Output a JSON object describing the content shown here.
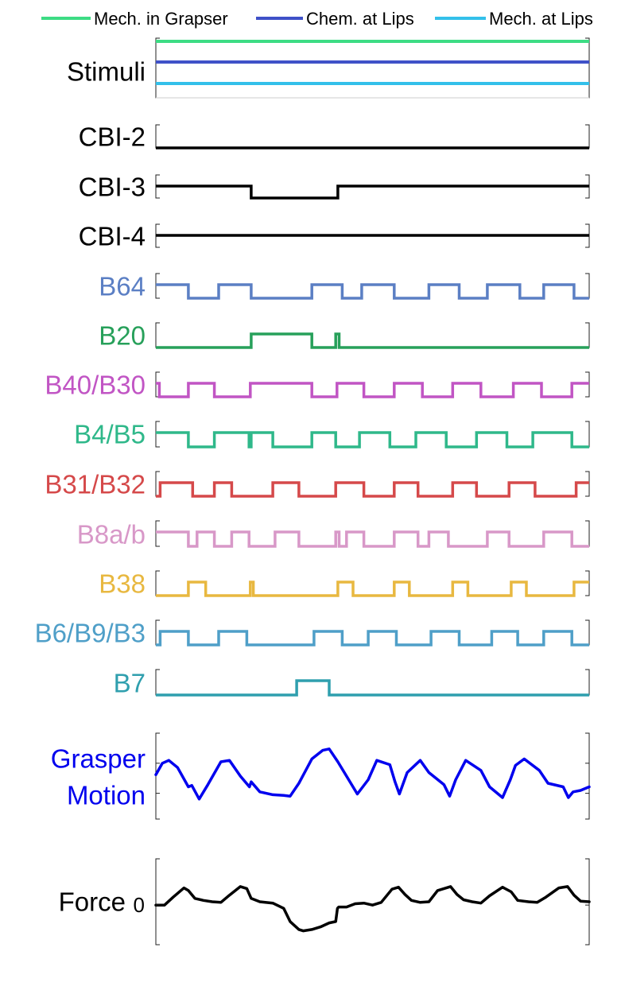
{
  "chart_data": {
    "type": "line",
    "x_range": [
      0,
      100
    ],
    "grid": false,
    "legend": {
      "placement": "top",
      "entries": [
        {
          "name": "Mech. in Grapser",
          "color": "#3ddc84"
        },
        {
          "name": "Chem. at Lips",
          "color": "#3f51c8"
        },
        {
          "name": "Mech. at Lips",
          "color": "#33c0ea"
        }
      ]
    },
    "rows": [
      {
        "label": "Stimuli",
        "label_color": "#000000",
        "kind": "stimuli",
        "lines": [
          {
            "name": "Mech. in Grapser",
            "color": "#3ddc84",
            "level": 1
          },
          {
            "name": "Chem. at Lips",
            "color": "#3f51c8",
            "level": 1
          },
          {
            "name": "Mech. at Lips",
            "color": "#33c0ea",
            "level": 1
          }
        ]
      },
      {
        "label": "CBI-2",
        "label_color": "#000000",
        "color": "#000000",
        "kind": "step",
        "start": 0,
        "intervals": []
      },
      {
        "label": "CBI-3",
        "label_color": "#000000",
        "color": "#000000",
        "kind": "step",
        "start": 1,
        "intervals": [
          [
            0,
            22
          ],
          [
            42,
            100
          ]
        ]
      },
      {
        "label": "CBI-4",
        "label_color": "#000000",
        "color": "#000000",
        "kind": "step",
        "start": 1,
        "intervals": [
          [
            0,
            100
          ]
        ]
      },
      {
        "label": "B64",
        "label_color": "#5b7fc4",
        "color": "#5b7fc4",
        "kind": "step",
        "start": 1,
        "intervals": [
          [
            0,
            7.5
          ],
          [
            14.5,
            22
          ],
          [
            36,
            43
          ],
          [
            47.5,
            55
          ],
          [
            63,
            70
          ],
          [
            76.5,
            84
          ],
          [
            89.5,
            96.5
          ]
        ]
      },
      {
        "label": "B20",
        "label_color": "#27a05a",
        "color": "#27a05a",
        "kind": "step",
        "start": 0,
        "intervals": [
          [
            22,
            36
          ],
          [
            41.5,
            42.3
          ]
        ]
      },
      {
        "label": "B40/B30",
        "label_color": "#c155c4",
        "color": "#c155c4",
        "kind": "step",
        "start": 0,
        "intervals": [
          [
            0,
            0.8
          ],
          [
            7.5,
            13.5
          ],
          [
            21.8,
            36
          ],
          [
            41.8,
            48
          ],
          [
            55,
            61.5
          ],
          [
            68.5,
            75
          ],
          [
            82.5,
            89
          ],
          [
            96,
            100
          ]
        ]
      },
      {
        "label": "B4/B5",
        "label_color": "#2fb88a",
        "color": "#2fb88a",
        "kind": "step",
        "start": 1,
        "intervals": [
          [
            0,
            7.5
          ],
          [
            13.5,
            21.5
          ],
          [
            22,
            27
          ],
          [
            36,
            41.5
          ],
          [
            47,
            54
          ],
          [
            60,
            67
          ],
          [
            74,
            81
          ],
          [
            87,
            96
          ]
        ]
      },
      {
        "label": "B31/B32",
        "label_color": "#d5494a",
        "color": "#d5494a",
        "kind": "step",
        "start": 0,
        "intervals": [
          [
            1,
            8.5
          ],
          [
            13.5,
            17.5
          ],
          [
            27,
            33
          ],
          [
            41.5,
            48
          ],
          [
            55,
            60.5
          ],
          [
            68.5,
            74
          ],
          [
            81.5,
            87.5
          ],
          [
            97,
            100
          ]
        ]
      },
      {
        "label": "B8a/b",
        "label_color": "#d898c8",
        "color": "#d898c8",
        "kind": "step",
        "start": 1,
        "intervals": [
          [
            0,
            7.5
          ],
          [
            9.5,
            13.5
          ],
          [
            17.5,
            21.5
          ],
          [
            27.5,
            33
          ],
          [
            41.5,
            42.3
          ],
          [
            44,
            48
          ],
          [
            55,
            60.5
          ],
          [
            63,
            67.5
          ],
          [
            76.5,
            81.5
          ],
          [
            89.5,
            96
          ]
        ]
      },
      {
        "label": "B38",
        "label_color": "#e8b840",
        "color": "#e8b840",
        "kind": "step",
        "start": 0,
        "intervals": [
          [
            7.5,
            11.5
          ],
          [
            21.8,
            22.5
          ],
          [
            42,
            45.5
          ],
          [
            55,
            58.5
          ],
          [
            68.5,
            72
          ],
          [
            82,
            85.5
          ],
          [
            96.5,
            100
          ]
        ]
      },
      {
        "label": "B6/B9/B3",
        "label_color": "#4f9fc8",
        "color": "#4f9fc8",
        "kind": "step",
        "start": 0,
        "intervals": [
          [
            1,
            7.5
          ],
          [
            14.5,
            21
          ],
          [
            36.5,
            43
          ],
          [
            49,
            55.5
          ],
          [
            63.5,
            70
          ],
          [
            77.5,
            83.5
          ],
          [
            89.5,
            96
          ]
        ]
      },
      {
        "label": "B7",
        "label_color": "#2f9fae",
        "color": "#2f9fae",
        "kind": "step",
        "start": 0,
        "intervals": [
          [
            32.5,
            40
          ]
        ]
      },
      {
        "label": "Grasper\nMotion",
        "label_color": "#0000ee",
        "color": "#0000ee",
        "kind": "curve",
        "y_range": [
          -0.1,
          1.1
        ],
        "x": [
          0,
          1.5,
          3,
          5,
          7.5,
          8.3,
          10,
          12,
          15,
          17,
          19.5,
          21.6,
          22,
          24,
          27,
          29.5,
          31,
          33,
          36,
          38.5,
          40,
          42,
          44,
          46.5,
          49,
          51,
          54,
          55.2,
          56.2,
          58,
          61,
          63,
          66.5,
          67.8,
          69.2,
          71.5,
          75,
          77,
          80,
          81.8,
          83,
          85,
          88.5,
          90.5,
          94,
          95.2,
          96.3,
          98,
          100
        ],
        "y": [
          0.52,
          0.68,
          0.72,
          0.62,
          0.35,
          0.37,
          0.18,
          0.38,
          0.7,
          0.72,
          0.5,
          0.35,
          0.42,
          0.28,
          0.24,
          0.23,
          0.22,
          0.4,
          0.74,
          0.86,
          0.88,
          0.7,
          0.5,
          0.25,
          0.45,
          0.72,
          0.66,
          0.42,
          0.25,
          0.55,
          0.72,
          0.55,
          0.38,
          0.22,
          0.45,
          0.72,
          0.58,
          0.35,
          0.2,
          0.45,
          0.65,
          0.74,
          0.58,
          0.4,
          0.35,
          0.2,
          0.28,
          0.3,
          0.35
        ]
      },
      {
        "label": "Force",
        "label_color": "#000000",
        "color": "#000000",
        "kind": "curve",
        "y_range": [
          -0.6,
          0.7
        ],
        "ticks": [
          {
            "value": 0,
            "label": "0"
          }
        ],
        "x": [
          0,
          2,
          4,
          6.5,
          7.5,
          9,
          11,
          13,
          15,
          17,
          19.5,
          21,
          22,
          24,
          27,
          29.5,
          31,
          33,
          34,
          36,
          38,
          40,
          41.5,
          41.9,
          42.2,
          44,
          46,
          48,
          50,
          52,
          54.5,
          56,
          57.5,
          59,
          61,
          63,
          65,
          68,
          69.5,
          71,
          73,
          75,
          77,
          80,
          82,
          83.5,
          86,
          88,
          90,
          93,
          95,
          96.5,
          98,
          100
        ],
        "y": [
          0.0,
          0.0,
          0.12,
          0.26,
          0.22,
          0.1,
          0.07,
          0.05,
          0.04,
          0.15,
          0.28,
          0.25,
          0.1,
          0.05,
          0.03,
          -0.05,
          -0.25,
          -0.37,
          -0.39,
          -0.37,
          -0.33,
          -0.27,
          -0.25,
          -0.05,
          -0.03,
          -0.03,
          0.02,
          0.03,
          0.0,
          0.04,
          0.24,
          0.27,
          0.16,
          0.07,
          0.04,
          0.05,
          0.22,
          0.28,
          0.16,
          0.08,
          0.05,
          0.03,
          0.14,
          0.27,
          0.2,
          0.07,
          0.05,
          0.04,
          0.12,
          0.26,
          0.28,
          0.15,
          0.06,
          0.05
        ]
      }
    ]
  }
}
